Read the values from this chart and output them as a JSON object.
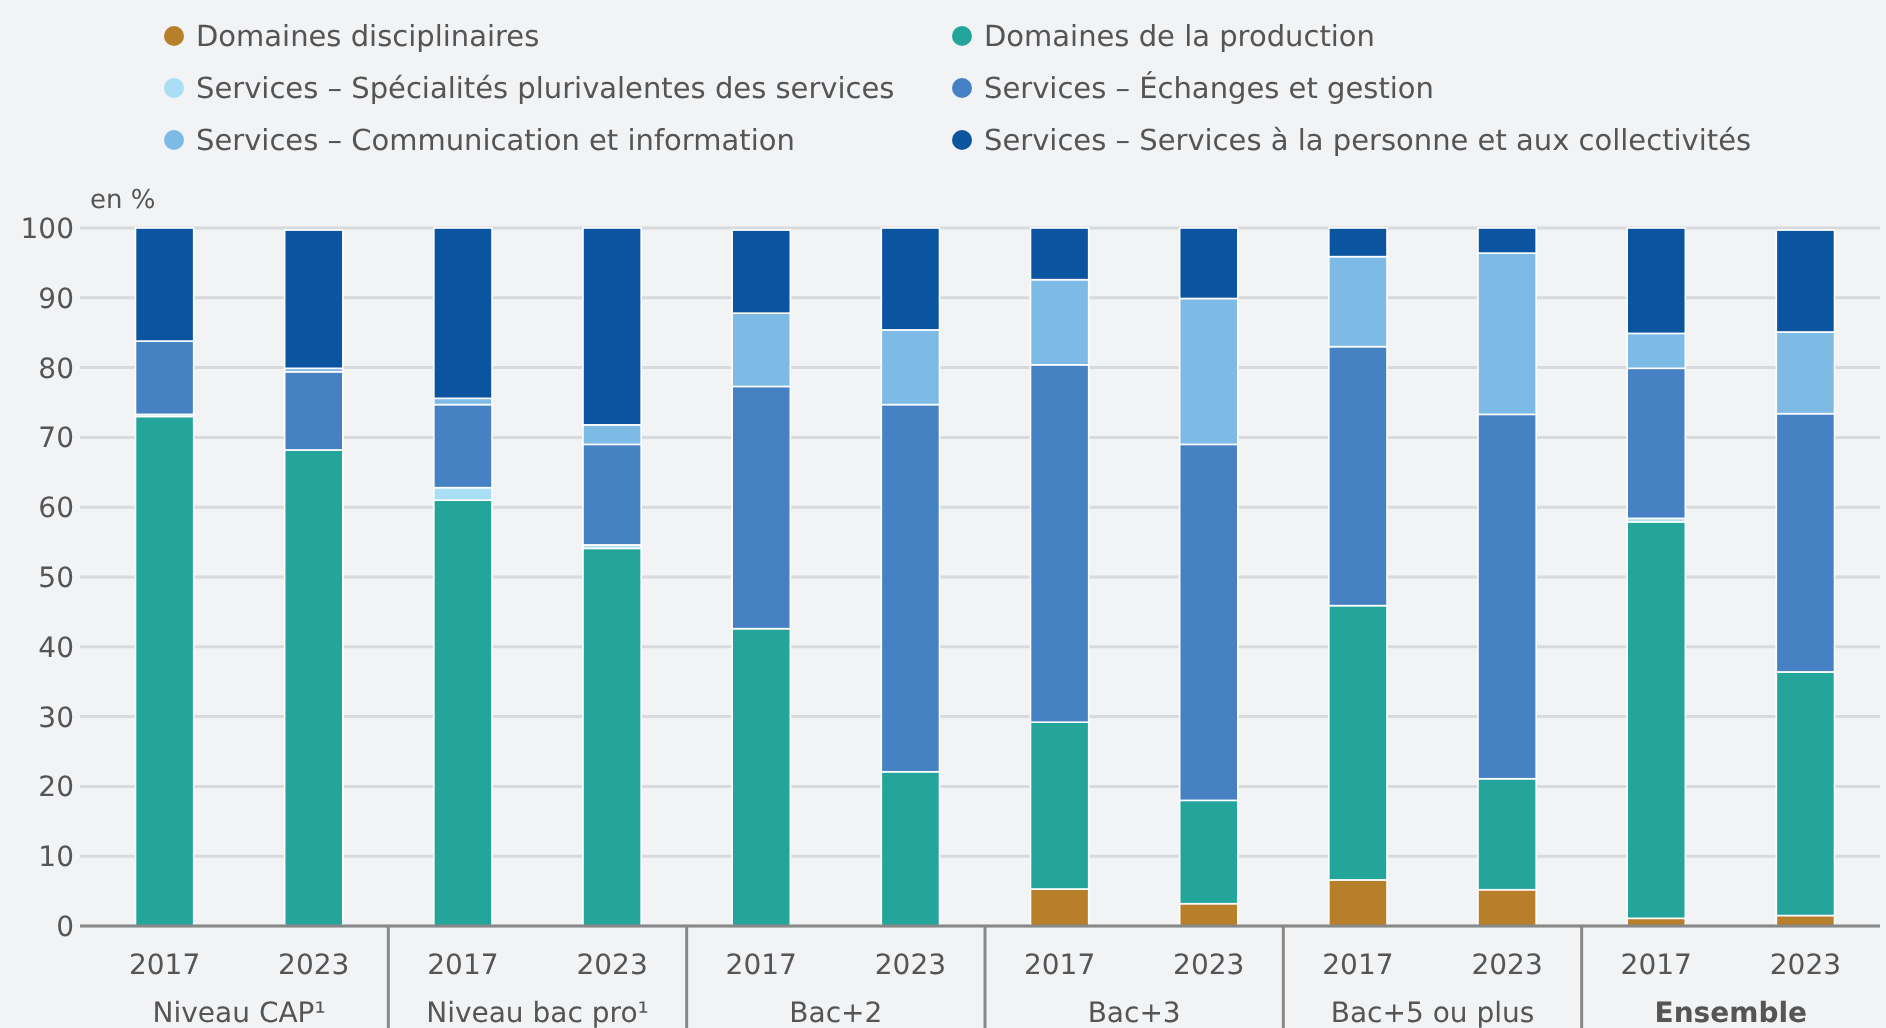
{
  "chart_data": {
    "type": "bar",
    "stacked": true,
    "ylabel": "en %",
    "categories": [
      "2017",
      "2023",
      "2017",
      "2023",
      "2017",
      "2023",
      "2017",
      "2023",
      "2017",
      "2023",
      "2017",
      "2023"
    ],
    "ylim": [
      0,
      100
    ],
    "yticks": [
      0,
      10,
      20,
      30,
      40,
      50,
      60,
      70,
      80,
      90,
      100
    ],
    "grid": "y",
    "legend": "top",
    "annotations": [
      "Niveau CAP¹",
      "Niveau bac pro¹",
      "Bac+2",
      "Bac+3",
      "Bac+5 ou plus",
      "Ensemble"
    ],
    "series": [
      {
        "name": "Domaines disciplinaires",
        "color": "#b87f2a",
        "values": [
          0,
          0,
          0,
          0,
          null,
          0,
          5.3,
          3.2,
          6.6,
          5.2,
          1.1,
          1.5
        ]
      },
      {
        "name": "Domaines de la production",
        "color": "#23a59c",
        "values": [
          73,
          68.2,
          61,
          54.1,
          42.6,
          22.1,
          23.9,
          14.8,
          39.3,
          15.9,
          56.8,
          34.9
        ]
      },
      {
        "name": "Services – Spécialités plurivalentes des services",
        "color": "#a9def5",
        "values": [
          0.3,
          null,
          1.8,
          0.5,
          0,
          0,
          0,
          0,
          0,
          0,
          0.5,
          null
        ]
      },
      {
        "name": "Services – Échanges et gestion",
        "color": "#4581c3",
        "values": [
          10.5,
          11.2,
          11.9,
          14.4,
          34.7,
          52.6,
          51.2,
          51,
          37.1,
          52.2,
          21.5,
          37
        ]
      },
      {
        "name": "Services – Communication et information",
        "color": "#7dbbe6",
        "values": [
          0,
          0.5,
          0.9,
          2.8,
          10.5,
          10.7,
          12.2,
          20.9,
          12.9,
          23.1,
          5,
          11.7
        ]
      },
      {
        "name": "Services – Services à la personne et aux collectivités",
        "color": "#0b54a0",
        "values": [
          16.2,
          19.8,
          24.4,
          28.2,
          11.9,
          14.6,
          7.4,
          10.1,
          4.1,
          3.6,
          15.1,
          14.6
        ]
      }
    ]
  }
}
